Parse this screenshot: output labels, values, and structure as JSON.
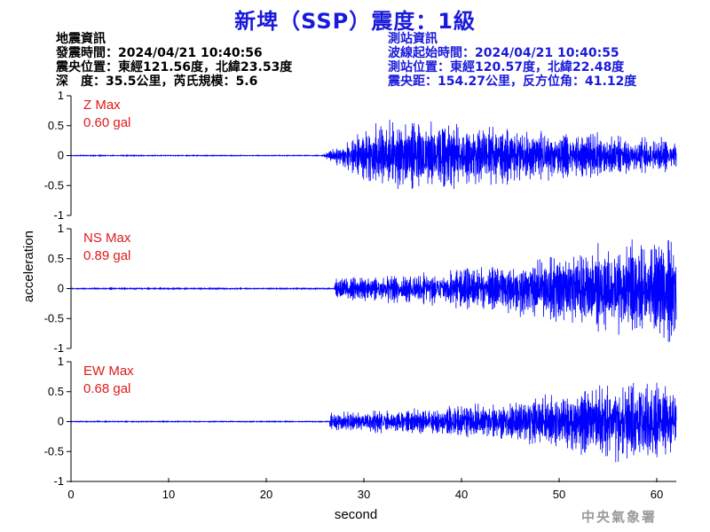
{
  "header": {
    "title": "新埤（SSP）震度：1級"
  },
  "earthquake_info": {
    "heading": "地震資訊",
    "lines": [
      "發震時間：2024/04/21 10:40:56",
      "震央位置：東經121.56度，北緯23.53度",
      "深　度：35.5公里，芮氏規模：5.6"
    ]
  },
  "station_info": {
    "heading": "測站資訊",
    "lines": [
      "波線起始時間：2024/04/21 10:40:55",
      "測站位置：東經120.57度，北緯22.48度",
      "震央距：154.27公里，反方位角：41.12度"
    ]
  },
  "footer": {
    "agency": "中央氣象署"
  },
  "colors": {
    "title": "#1a1adb",
    "station_text": "#1a1adb",
    "trace": "#0000ff",
    "max_label": "#e01a1a",
    "axis": "#000000",
    "footer": "#9a9a9a"
  },
  "chart_data": [
    {
      "type": "line",
      "component": "Z",
      "max_label": "Z Max",
      "max_value_label": "0.60 gal",
      "peak": 0.6,
      "xlim": [
        0,
        62
      ],
      "ylim": [
        -1,
        1
      ],
      "yticks": [
        1,
        0.5,
        0,
        -0.5,
        -1
      ],
      "onset": 25.6,
      "x_sample_range": [
        0,
        62
      ],
      "note_series": "noise-like acceleration waveform"
    },
    {
      "type": "line",
      "component": "NS",
      "max_label": "NS Max",
      "max_value_label": "0.89 gal",
      "peak": 0.89,
      "xlim": [
        0,
        62
      ],
      "ylim": [
        -1,
        1
      ],
      "yticks": [
        1,
        0.5,
        0,
        -0.5,
        -1
      ],
      "onset": 27.0,
      "x_sample_range": [
        0,
        62
      ],
      "note_series": "noise-like acceleration waveform"
    },
    {
      "type": "line",
      "component": "EW",
      "max_label": "EW Max",
      "max_value_label": "0.68 gal",
      "peak": 0.68,
      "xlim": [
        0,
        62
      ],
      "ylim": [
        -1,
        1
      ],
      "yticks": [
        1,
        0.5,
        0,
        -0.5,
        -1
      ],
      "onset": 26.5,
      "x_sample_range": [
        0,
        62
      ],
      "note_series": "noise-like acceleration waveform"
    }
  ],
  "shared_axes": {
    "xlabel": "second",
    "ylabel": "acceleration",
    "xticks": [
      0,
      10,
      20,
      30,
      40,
      50,
      60
    ]
  }
}
